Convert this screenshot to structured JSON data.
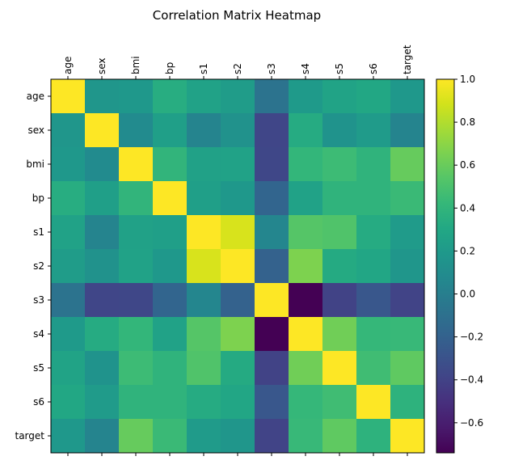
{
  "chart_data": {
    "type": "heatmap",
    "title": "Correlation Matrix Heatmap",
    "labels": [
      "age",
      "sex",
      "bmi",
      "bp",
      "s1",
      "s2",
      "s3",
      "s4",
      "s5",
      "s6",
      "target"
    ],
    "matrix": [
      [
        1.0,
        0.17,
        0.19,
        0.34,
        0.26,
        0.22,
        -0.08,
        0.2,
        0.27,
        0.3,
        0.19
      ],
      [
        0.17,
        1.0,
        0.09,
        0.24,
        0.04,
        0.14,
        -0.38,
        0.33,
        0.15,
        0.21,
        0.04
      ],
      [
        0.19,
        0.09,
        1.0,
        0.4,
        0.25,
        0.26,
        -0.37,
        0.41,
        0.45,
        0.39,
        0.59
      ],
      [
        0.34,
        0.24,
        0.4,
        1.0,
        0.24,
        0.19,
        -0.18,
        0.26,
        0.39,
        0.39,
        0.44
      ],
      [
        0.26,
        0.04,
        0.25,
        0.24,
        1.0,
        0.9,
        0.05,
        0.54,
        0.52,
        0.33,
        0.21
      ],
      [
        0.22,
        0.14,
        0.26,
        0.19,
        0.9,
        1.0,
        -0.2,
        0.66,
        0.32,
        0.29,
        0.17
      ],
      [
        -0.08,
        -0.38,
        -0.37,
        -0.18,
        0.05,
        -0.2,
        1.0,
        -0.74,
        -0.4,
        -0.27,
        -0.39
      ],
      [
        0.2,
        0.33,
        0.41,
        0.26,
        0.54,
        0.66,
        -0.74,
        1.0,
        0.62,
        0.42,
        0.43
      ],
      [
        0.27,
        0.15,
        0.45,
        0.39,
        0.52,
        0.32,
        -0.4,
        0.62,
        1.0,
        0.46,
        0.57
      ],
      [
        0.3,
        0.21,
        0.39,
        0.39,
        0.33,
        0.29,
        -0.27,
        0.42,
        0.46,
        1.0,
        0.38
      ],
      [
        0.19,
        0.04,
        0.59,
        0.44,
        0.21,
        0.17,
        -0.39,
        0.43,
        0.57,
        0.38,
        1.0
      ]
    ],
    "vmin": -0.74,
    "vmax": 1.0,
    "colormap": "viridis",
    "colorbar_ticks": [
      "1.0",
      "0.8",
      "0.6",
      "0.4",
      "0.2",
      "0.0",
      "−0.2",
      "−0.4",
      "−0.6"
    ],
    "colorbar_tick_values": [
      1.0,
      0.8,
      0.6,
      0.4,
      0.2,
      0.0,
      -0.2,
      -0.4,
      -0.6
    ],
    "grid": false,
    "x_tick_position": "top"
  }
}
